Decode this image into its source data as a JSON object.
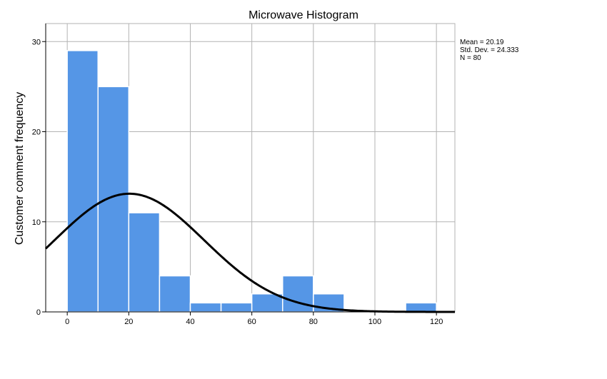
{
  "chart_data": {
    "type": "bar",
    "title": "Microwave Histogram",
    "xlabel": "",
    "ylabel": "Customer comment frequency",
    "xlim": [
      -7,
      126
    ],
    "ylim": [
      0,
      32
    ],
    "bin_width": 10,
    "x_ticks": [
      0,
      20,
      40,
      60,
      80,
      100,
      120
    ],
    "y_ticks": [
      0,
      10,
      20,
      30
    ],
    "grid": true,
    "bins": [
      {
        "start": 0,
        "end": 10,
        "count": 29
      },
      {
        "start": 10,
        "end": 20,
        "count": 25
      },
      {
        "start": 20,
        "end": 30,
        "count": 11
      },
      {
        "start": 30,
        "end": 40,
        "count": 4
      },
      {
        "start": 40,
        "end": 50,
        "count": 1
      },
      {
        "start": 50,
        "end": 60,
        "count": 1
      },
      {
        "start": 60,
        "end": 70,
        "count": 2
      },
      {
        "start": 70,
        "end": 80,
        "count": 4
      },
      {
        "start": 80,
        "end": 90,
        "count": 2
      },
      {
        "start": 110,
        "end": 120,
        "count": 1
      }
    ],
    "normal_curve": {
      "mean": 20.19,
      "std_dev": 24.333,
      "n": 80
    },
    "stats_box": {
      "mean_label": "Mean = 20.19",
      "sd_label": "Std. Dev. = 24.333",
      "n_label": "N = 80"
    },
    "colors": {
      "bar_fill": "#5596e6",
      "bar_stroke": "#ffffff",
      "grid": "#b3b3b3",
      "axis": "#000000",
      "curve": "#000000"
    }
  }
}
